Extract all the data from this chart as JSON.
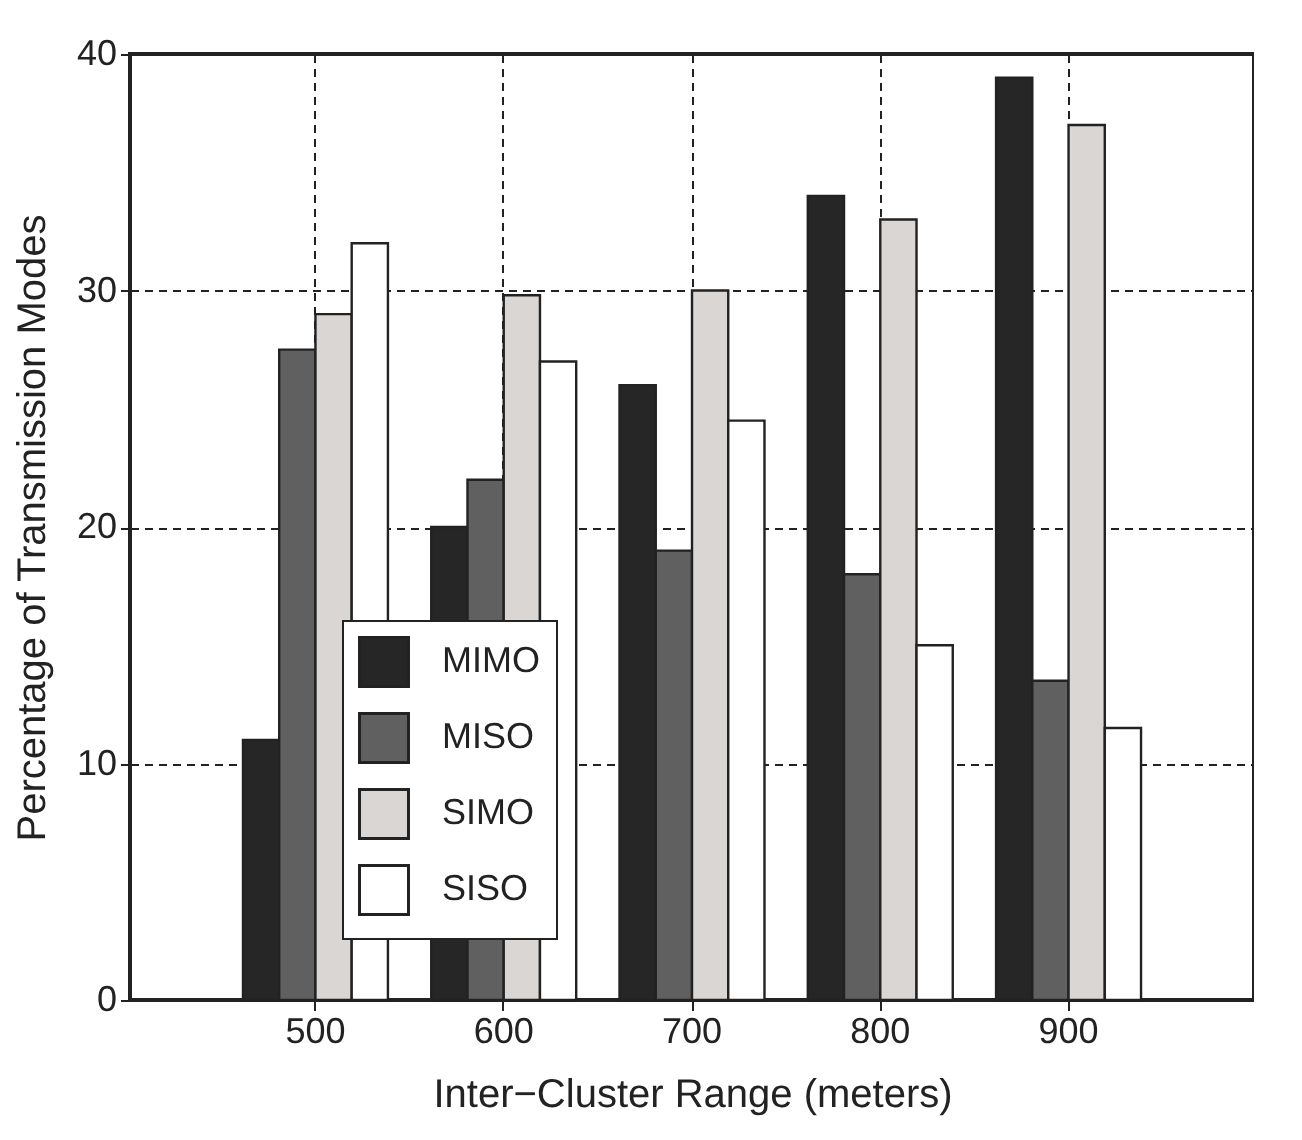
{
  "chart_data": {
    "type": "bar",
    "xlabel": "Inter−Cluster Range (meters)",
    "ylabel": "Percentage of Transmission Modes",
    "categories": [
      "500",
      "600",
      "700",
      "800",
      "900"
    ],
    "series": [
      {
        "name": "MIMO",
        "color": "#262626",
        "values": [
          11,
          20,
          26,
          34,
          39
        ]
      },
      {
        "name": "MISO",
        "color": "#606060",
        "values": [
          27.5,
          22,
          19,
          18,
          13.5
        ]
      },
      {
        "name": "SIMO",
        "color": "#d9d6d3",
        "values": [
          29,
          29.8,
          30,
          33,
          37
        ]
      },
      {
        "name": "SISO",
        "color": "#ffffff",
        "values": [
          32,
          27,
          24.5,
          15,
          11.5
        ]
      }
    ],
    "ylim": [
      0,
      40
    ],
    "yticks": [
      0,
      10,
      20,
      30,
      40
    ],
    "grid": true,
    "legend": "bottom left"
  }
}
